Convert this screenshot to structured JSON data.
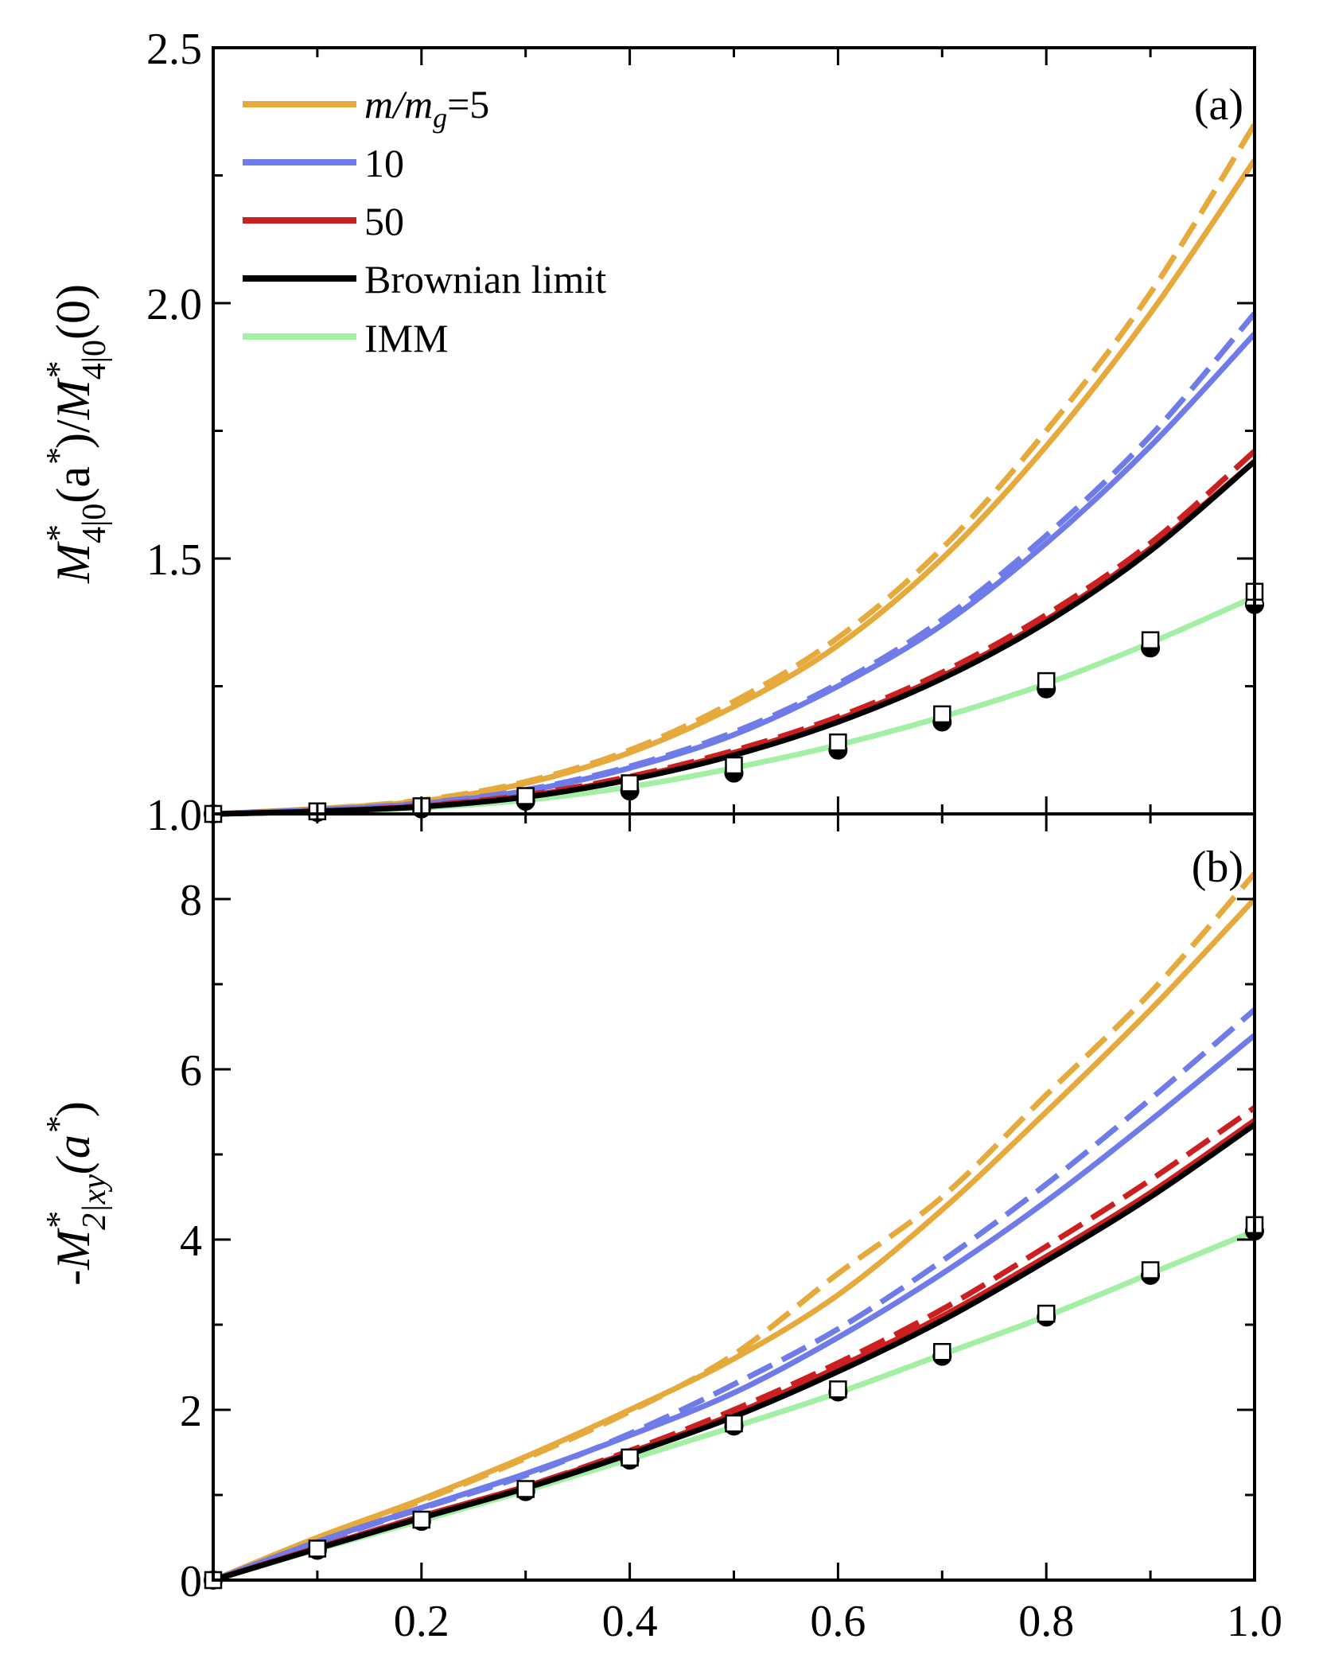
{
  "chart_data": [
    {
      "panel": "a",
      "type": "line",
      "panel_label": "(a)",
      "ylabel": {
        "main": "M",
        "sup1": "*",
        "sub1": "4|0",
        "mid": "(a",
        "sup2": "*",
        "mid2": ")/",
        "main2": "M",
        "sup3": "*",
        "sub2": "4|0",
        "tail": "(0)"
      },
      "xlim": [
        0,
        1.0
      ],
      "ylim": [
        1.0,
        2.5
      ],
      "yticks": [
        1.0,
        1.5,
        2.0,
        2.5
      ],
      "ytick_labels": [
        "1.0",
        "1.5",
        "2.0",
        "2.5"
      ],
      "legend": {
        "position": "top-left",
        "entries": [
          {
            "label_italic": "m/m",
            "label_sub": "g",
            "label_tail": "=5",
            "color": "#E5A93C"
          },
          {
            "label": "10",
            "color": "#6E7BE8"
          },
          {
            "label": "50",
            "color": "#CC1F1F"
          },
          {
            "label": "Brownian limit",
            "color": "#000000"
          },
          {
            "label": "IMM",
            "color": "#A3EFA3"
          }
        ]
      },
      "series": [
        {
          "name": "m/mg=5 theory",
          "style": "solid",
          "color": "#E5A93C",
          "x": [
            0,
            0.1,
            0.2,
            0.3,
            0.4,
            0.5,
            0.6,
            0.7,
            0.8,
            0.9,
            1.0
          ],
          "y": [
            1.0,
            1.01,
            1.025,
            1.06,
            1.12,
            1.21,
            1.33,
            1.5,
            1.72,
            1.98,
            2.28
          ]
        },
        {
          "name": "m/mg=5 simulation",
          "style": "dashed",
          "color": "#E5A93C",
          "x": [
            0,
            0.1,
            0.2,
            0.3,
            0.4,
            0.5,
            0.6,
            0.7,
            0.8,
            0.9,
            1.0
          ],
          "y": [
            1.0,
            1.01,
            1.027,
            1.063,
            1.125,
            1.22,
            1.345,
            1.52,
            1.75,
            2.02,
            2.35
          ]
        },
        {
          "name": "m/mg=10 theory",
          "style": "solid",
          "color": "#6E7BE8",
          "x": [
            0,
            0.1,
            0.2,
            0.3,
            0.4,
            0.5,
            0.6,
            0.7,
            0.8,
            0.9,
            1.0
          ],
          "y": [
            1.0,
            1.008,
            1.02,
            1.045,
            1.09,
            1.155,
            1.25,
            1.37,
            1.53,
            1.72,
            1.94
          ]
        },
        {
          "name": "m/mg=10 simulation",
          "style": "dashed",
          "color": "#6E7BE8",
          "x": [
            0,
            0.1,
            0.2,
            0.3,
            0.4,
            0.5,
            0.6,
            0.7,
            0.8,
            0.9,
            1.0
          ],
          "y": [
            1.0,
            1.008,
            1.021,
            1.047,
            1.093,
            1.16,
            1.255,
            1.38,
            1.545,
            1.74,
            1.98
          ]
        },
        {
          "name": "m/mg=50 theory",
          "style": "solid",
          "color": "#CC1F1F",
          "x": [
            0,
            0.1,
            0.2,
            0.3,
            0.4,
            0.5,
            0.6,
            0.7,
            0.8,
            0.9,
            1.0
          ],
          "y": [
            1.0,
            1.005,
            1.015,
            1.035,
            1.07,
            1.12,
            1.185,
            1.27,
            1.38,
            1.52,
            1.69
          ]
        },
        {
          "name": "m/mg=50 simulation",
          "style": "dashed",
          "color": "#CC1F1F",
          "x": [
            0,
            0.1,
            0.2,
            0.3,
            0.4,
            0.5,
            0.6,
            0.7,
            0.8,
            0.9,
            1.0
          ],
          "y": [
            1.0,
            1.005,
            1.016,
            1.037,
            1.073,
            1.124,
            1.19,
            1.277,
            1.39,
            1.53,
            1.71
          ]
        },
        {
          "name": "Brownian limit",
          "style": "solid",
          "color": "#000000",
          "x": [
            0,
            0.1,
            0.2,
            0.3,
            0.4,
            0.5,
            0.6,
            0.7,
            0.8,
            0.9,
            1.0
          ],
          "y": [
            1.0,
            1.005,
            1.014,
            1.033,
            1.067,
            1.115,
            1.18,
            1.265,
            1.375,
            1.515,
            1.69
          ]
        },
        {
          "name": "IMM",
          "style": "solid",
          "color": "#A3EFA3",
          "x": [
            0,
            0.1,
            0.2,
            0.3,
            0.4,
            0.5,
            0.6,
            0.7,
            0.8,
            0.9,
            1.0
          ],
          "y": [
            1.0,
            1.004,
            1.012,
            1.027,
            1.053,
            1.09,
            1.135,
            1.19,
            1.255,
            1.335,
            1.425
          ]
        }
      ],
      "markers": {
        "open_squares": {
          "x": [
            0,
            0.1,
            0.2,
            0.3,
            0.4,
            0.5,
            0.6,
            0.7,
            0.8,
            0.9,
            1.0
          ],
          "y": [
            1.0,
            1.005,
            1.015,
            1.035,
            1.06,
            1.095,
            1.14,
            1.195,
            1.26,
            1.34,
            1.435
          ]
        },
        "half_filled_circles": {
          "x": [
            0,
            0.1,
            0.2,
            0.3,
            0.4,
            0.5,
            0.6,
            0.7,
            0.8,
            0.9,
            1.0
          ],
          "y": [
            1.0,
            1.003,
            1.01,
            1.025,
            1.045,
            1.08,
            1.125,
            1.18,
            1.245,
            1.325,
            1.41
          ]
        }
      }
    },
    {
      "panel": "b",
      "type": "line",
      "panel_label": "(b)",
      "ylabel": {
        "main": "-M",
        "sup1": "*",
        "sub1": "2|xy",
        "tail": "(a",
        "sup2": "*",
        "tail2": ")"
      },
      "xlim": [
        0,
        1.0
      ],
      "xticks": [
        0.2,
        0.4,
        0.6,
        0.8,
        1.0
      ],
      "xtick_labels": [
        "0.2",
        "0.4",
        "0.6",
        "0.8",
        "1.0"
      ],
      "ylim": [
        0,
        9
      ],
      "yticks": [
        0,
        2,
        4,
        6,
        8
      ],
      "ytick_labels": [
        "0",
        "2",
        "4",
        "6",
        "8"
      ],
      "series": [
        {
          "name": "m/mg=5 theory",
          "style": "solid",
          "color": "#E5A93C",
          "x": [
            0,
            0.1,
            0.2,
            0.3,
            0.4,
            0.5,
            0.6,
            0.7,
            0.8,
            0.9,
            1.0
          ],
          "y": [
            0,
            0.5,
            0.95,
            1.45,
            2.0,
            2.6,
            3.35,
            4.35,
            5.5,
            6.7,
            8.0
          ]
        },
        {
          "name": "m/mg=5 simulation",
          "style": "dashed",
          "color": "#E5A93C",
          "x": [
            0,
            0.1,
            0.2,
            0.3,
            0.4,
            0.5,
            0.6,
            0.7,
            0.8,
            0.9,
            1.0
          ],
          "y": [
            0,
            0.48,
            0.93,
            1.43,
            1.98,
            2.65,
            3.6,
            4.5,
            5.7,
            6.9,
            8.3
          ]
        },
        {
          "name": "m/mg=10 theory",
          "style": "solid",
          "color": "#6E7BE8",
          "x": [
            0,
            0.1,
            0.2,
            0.3,
            0.4,
            0.5,
            0.6,
            0.7,
            0.8,
            0.9,
            1.0
          ],
          "y": [
            0,
            0.45,
            0.85,
            1.25,
            1.7,
            2.2,
            2.85,
            3.6,
            4.45,
            5.4,
            6.4
          ]
        },
        {
          "name": "m/mg=10 simulation",
          "style": "dashed",
          "color": "#6E7BE8",
          "x": [
            0,
            0.1,
            0.2,
            0.3,
            0.4,
            0.5,
            0.6,
            0.7,
            0.8,
            0.9,
            1.0
          ],
          "y": [
            0,
            0.44,
            0.84,
            1.23,
            1.72,
            2.3,
            2.95,
            3.75,
            4.65,
            5.65,
            6.7
          ]
        },
        {
          "name": "m/mg=50 theory",
          "style": "solid",
          "color": "#CC1F1F",
          "x": [
            0,
            0.1,
            0.2,
            0.3,
            0.4,
            0.5,
            0.6,
            0.7,
            0.8,
            0.9,
            1.0
          ],
          "y": [
            0,
            0.38,
            0.75,
            1.1,
            1.5,
            1.95,
            2.5,
            3.1,
            3.8,
            4.55,
            5.4
          ]
        },
        {
          "name": "m/mg=50 simulation",
          "style": "dashed",
          "color": "#CC1F1F",
          "x": [
            0,
            0.1,
            0.2,
            0.3,
            0.4,
            0.5,
            0.6,
            0.7,
            0.8,
            0.9,
            1.0
          ],
          "y": [
            0,
            0.38,
            0.75,
            1.1,
            1.52,
            2.0,
            2.55,
            3.18,
            3.92,
            4.7,
            5.55
          ]
        },
        {
          "name": "Brownian limit",
          "style": "solid",
          "color": "#000000",
          "x": [
            0,
            0.1,
            0.2,
            0.3,
            0.4,
            0.5,
            0.6,
            0.7,
            0.8,
            0.9,
            1.0
          ],
          "y": [
            0,
            0.37,
            0.73,
            1.08,
            1.48,
            1.92,
            2.45,
            3.05,
            3.75,
            4.5,
            5.35
          ]
        },
        {
          "name": "IMM",
          "style": "solid",
          "color": "#A3EFA3",
          "x": [
            0,
            0.1,
            0.2,
            0.3,
            0.4,
            0.5,
            0.6,
            0.7,
            0.8,
            0.9,
            1.0
          ],
          "y": [
            0,
            0.36,
            0.7,
            1.05,
            1.42,
            1.8,
            2.2,
            2.65,
            3.1,
            3.6,
            4.1
          ]
        }
      ],
      "markers": {
        "open_squares": {
          "x": [
            0,
            0.1,
            0.2,
            0.3,
            0.4,
            0.5,
            0.6,
            0.7,
            0.8,
            0.9,
            1.0
          ],
          "y": [
            0,
            0.37,
            0.71,
            1.07,
            1.44,
            1.84,
            2.24,
            2.68,
            3.13,
            3.64,
            4.17
          ]
        },
        "half_filled_circles": {
          "x": [
            0,
            0.1,
            0.2,
            0.3,
            0.4,
            0.5,
            0.6,
            0.7,
            0.8,
            0.9,
            1.0
          ],
          "y": [
            0,
            0.35,
            0.69,
            1.04,
            1.41,
            1.81,
            2.21,
            2.63,
            3.09,
            3.58,
            4.1
          ]
        }
      }
    }
  ]
}
